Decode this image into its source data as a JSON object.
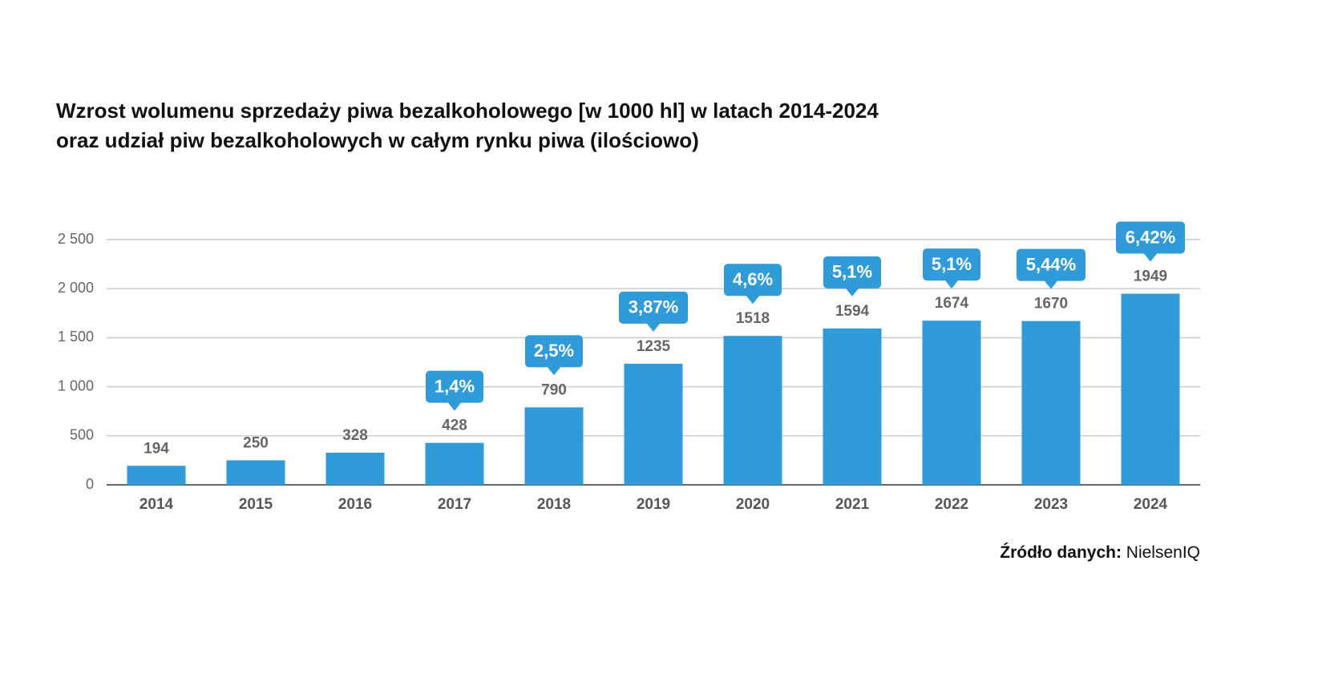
{
  "chart_data": {
    "type": "bar",
    "title": [
      "Wzrost wolumenu sprzedaży piwa bezalkoholowego [w 1000 hl] w latach 2014-2024",
      "oraz udział piw bezalkoholowych w całym rynku piwa (ilościowo)"
    ],
    "categories": [
      "2014",
      "2015",
      "2016",
      "2017",
      "2018",
      "2019",
      "2020",
      "2021",
      "2022",
      "2023",
      "2024"
    ],
    "values": [
      194,
      250,
      328,
      428,
      790,
      1235,
      1518,
      1594,
      1674,
      1670,
      1949
    ],
    "color": "#2f9bd8",
    "callouts": {
      "color": "#2f9bd8",
      "values": [
        null,
        null,
        null,
        1.4,
        2.5,
        3.87,
        4.6,
        5.1,
        5.1,
        5.44,
        6.42
      ],
      "value_labels": [
        null,
        null,
        null,
        "1,4%",
        "2,5%",
        "3,87%",
        "4,6%",
        "5,1%",
        "5,1%",
        "5,44%",
        "6,42%"
      ]
    },
    "ylim": [
      0,
      2500
    ],
    "yticks": [
      0,
      500,
      {
        "value": 1000,
        "label": "1 000"
      },
      {
        "value": 1500,
        "label": "1 500"
      },
      {
        "value": 2000,
        "label": "2 000"
      },
      {
        "value": 2500,
        "label": "2 500"
      }
    ],
    "grid": true,
    "source_label": "Źródło danych:",
    "source": "NielsenIQ"
  }
}
